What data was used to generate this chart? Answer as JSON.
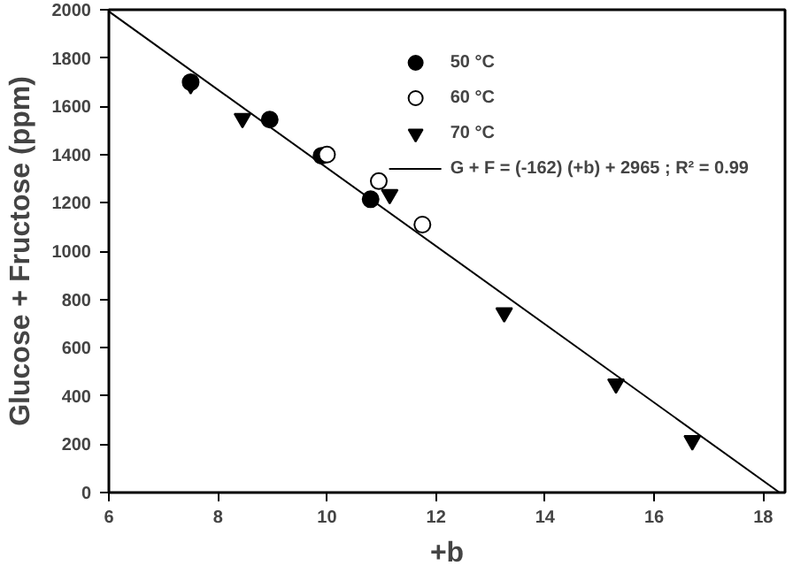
{
  "chart_data": {
    "type": "scatter",
    "xlabel": "+b",
    "ylabel": "Glucose + Fructose (ppm)",
    "xlim": [
      6,
      18.4
    ],
    "ylim": [
      0,
      2000
    ],
    "xticks": [
      6,
      8,
      10,
      12,
      14,
      16,
      18
    ],
    "yticks": [
      0,
      200,
      400,
      600,
      800,
      1000,
      1200,
      1400,
      1600,
      1800,
      2000
    ],
    "grid": false,
    "legend": "top right",
    "series": [
      {
        "name": "50 °C",
        "color": "#000000",
        "marker": "circle",
        "x": [
          7.5,
          8.95,
          9.9,
          10.8
        ],
        "values": [
          1700,
          1545,
          1395,
          1215
        ]
      },
      {
        "name": "60 °C",
        "color": "#ffffff",
        "marker": "circle",
        "x": [
          10.0,
          10.95,
          11.75
        ],
        "values": [
          1400,
          1290,
          1110
        ]
      },
      {
        "name": "70 °C",
        "color": "#000000",
        "marker": "triangle",
        "x": [
          7.5,
          8.45,
          11.15,
          13.25,
          15.3,
          16.7
        ],
        "values": [
          1690,
          1550,
          1235,
          745,
          450,
          215
        ]
      },
      {
        "name": "G + F = (-162) (+b) + 2965 ; R² = 0.99",
        "type": "line",
        "color": "#000000",
        "x": [
          6,
          18.3
        ],
        "values": [
          1993,
          0
        ]
      }
    ]
  }
}
